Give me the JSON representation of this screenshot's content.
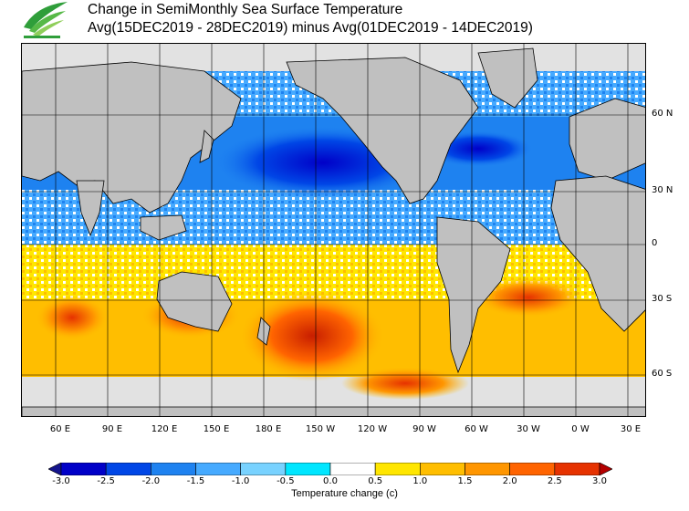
{
  "title": {
    "line1": "Change in SemiMonthly Sea Surface Temperature",
    "line2": "Avg(15DEC2019 - 28DEC2019) minus Avg(01DEC2019 - 14DEC2019)"
  },
  "map": {
    "lat_labels": [
      "60 N",
      "30 N",
      "0",
      "30 S",
      "60 S"
    ],
    "lon_labels": [
      "60 E",
      "90 E",
      "120 E",
      "150 E",
      "180 E",
      "150 W",
      "120 W",
      "90 W",
      "60 W",
      "30 W",
      "0 W",
      "30 E"
    ],
    "land_color": "#c0c0c0",
    "ice_color": "#e2e2e2"
  },
  "colorbar": {
    "title": "Temperature change  (c)",
    "ticks": [
      "-3.0",
      "-2.5",
      "-2.0",
      "-1.5",
      "-1.0",
      "-0.5",
      "0.0",
      "0.5",
      "1.0",
      "1.5",
      "2.0",
      "2.5",
      "3.0"
    ],
    "colors": [
      "#14148c",
      "#0000c8",
      "#0046e6",
      "#1e82f0",
      "#46aaff",
      "#78d2ff",
      "#00e6ff",
      "#ffffff",
      "#ffe600",
      "#ffbe00",
      "#ff9600",
      "#ff6400",
      "#e63200",
      "#b40000"
    ]
  }
}
